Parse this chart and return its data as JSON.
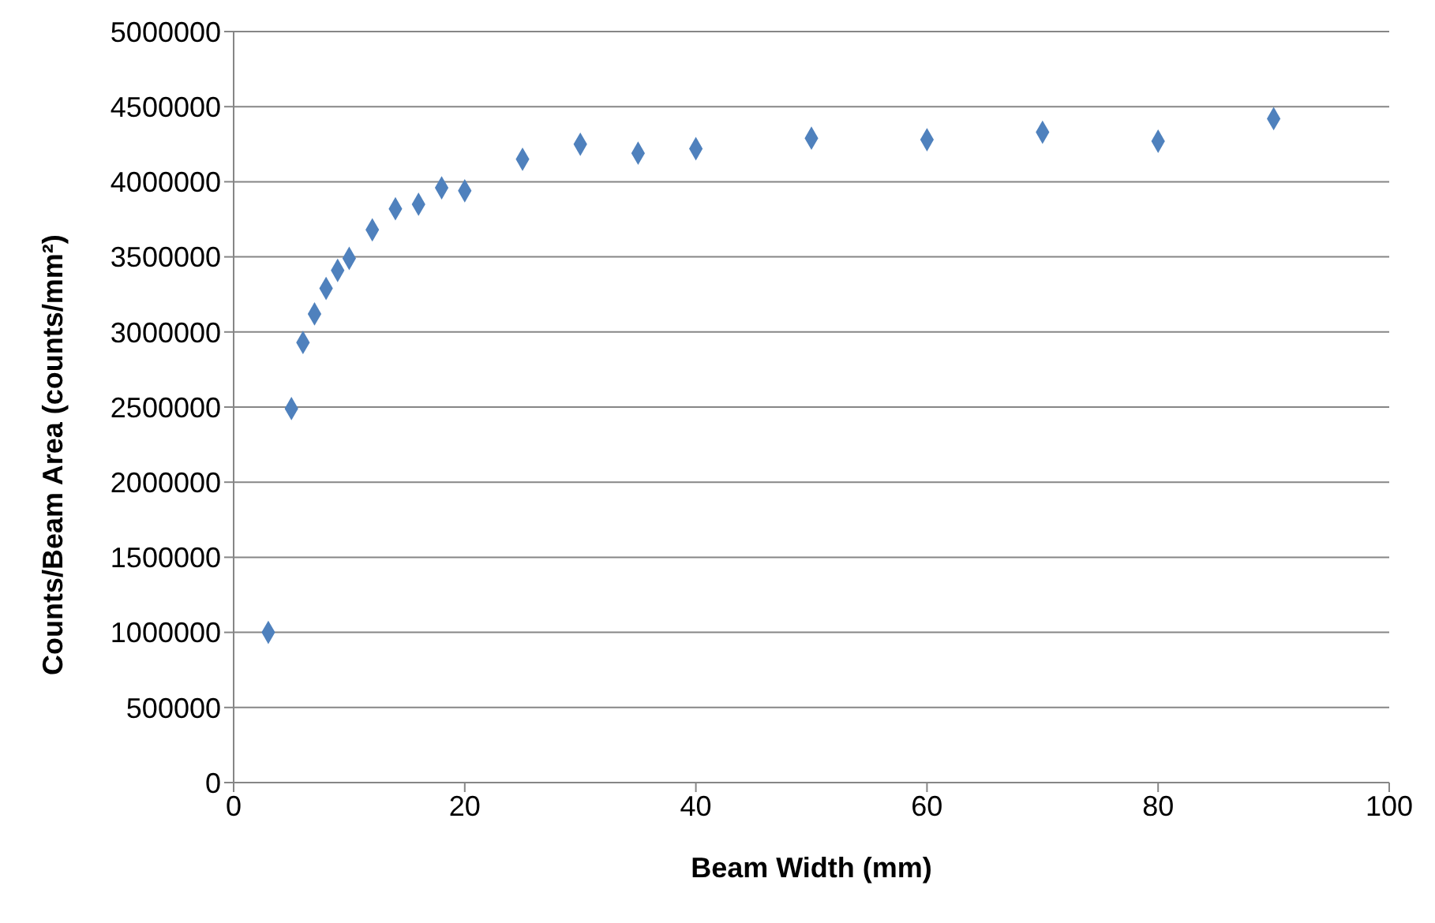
{
  "chart_data": {
    "type": "scatter",
    "xlabel": "Beam Width (mm)",
    "ylabel": "Counts/Beam Area (counts/mm²)",
    "x": [
      3,
      5,
      6,
      7,
      8,
      9,
      10,
      12,
      14,
      16,
      18,
      20,
      25,
      30,
      35,
      40,
      50,
      60,
      70,
      80,
      90
    ],
    "series": [
      {
        "color": "#4f81bd",
        "values": [
          1000000,
          2490000,
          2930000,
          3120000,
          3290000,
          3410000,
          3490000,
          3680000,
          3820000,
          3850000,
          3960000,
          3940000,
          4150000,
          4250000,
          4190000,
          4220000,
          4290000,
          4280000,
          4330000,
          4270000,
          4420000
        ]
      }
    ],
    "xlim": [
      0,
      100
    ],
    "xticks": [
      0,
      20,
      40,
      60,
      80,
      100
    ],
    "ylim": [
      0,
      5000000
    ],
    "yticks": [
      0,
      500000,
      1000000,
      1500000,
      2000000,
      2500000,
      3000000,
      3500000,
      4000000,
      4500000,
      5000000
    ],
    "grid": "y",
    "legend": false,
    "marker": "diamond"
  }
}
